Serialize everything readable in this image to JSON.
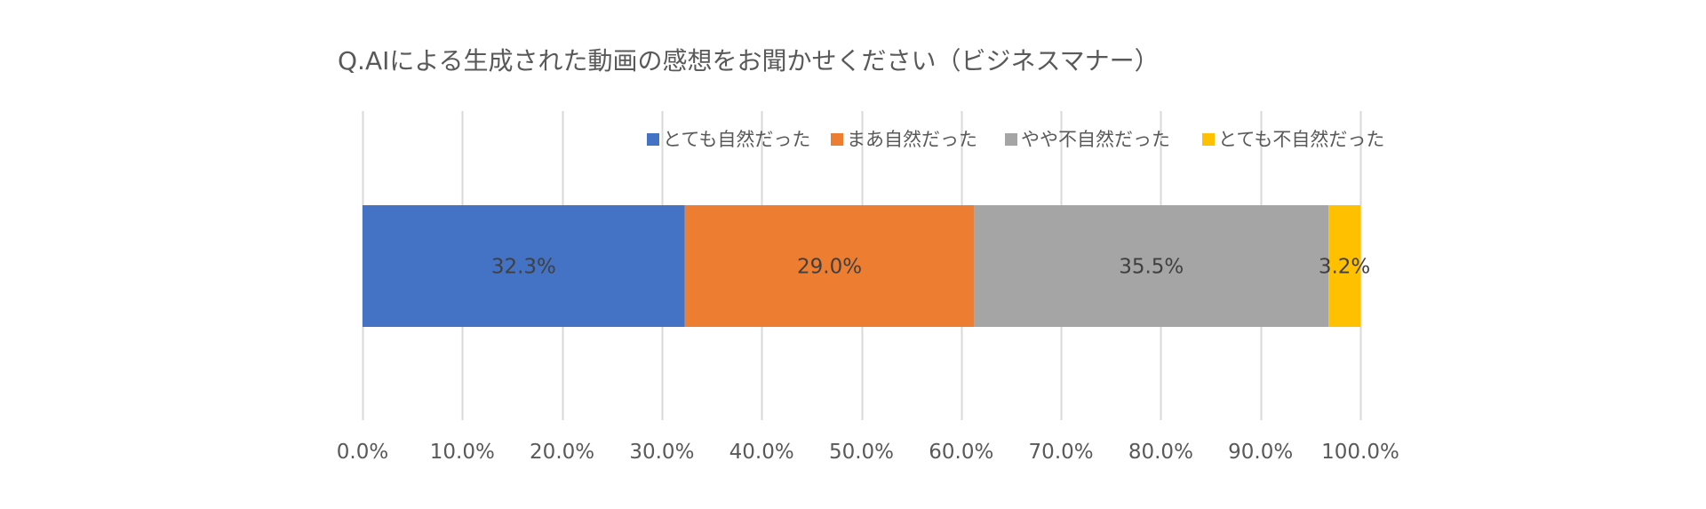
{
  "chart_data": {
    "type": "bar",
    "orientation": "horizontal",
    "stacked": "percent",
    "title": "Q.AIによる生成された動画の感想をお聞かせください（ビジネスマナー）",
    "categories": [
      ""
    ],
    "series": [
      {
        "name": "とても自然だった",
        "values": [
          32.3
        ],
        "label": "32.3%",
        "color": "#4472C4"
      },
      {
        "name": "まあ自然だった",
        "values": [
          29.0
        ],
        "label": "29.0%",
        "color": "#ED7D31"
      },
      {
        "name": "やや不自然だった",
        "values": [
          35.5
        ],
        "label": "35.5%",
        "color": "#A5A5A5"
      },
      {
        "name": "とても不自然だった",
        "values": [
          3.2
        ],
        "label": "3.2%",
        "color": "#FFC000"
      }
    ],
    "xlim": [
      0,
      100
    ],
    "xticks": [
      0,
      10,
      20,
      30,
      40,
      50,
      60,
      70,
      80,
      90,
      100
    ],
    "xtick_labels": [
      "0.0%",
      "10.0%",
      "20.0%",
      "30.0%",
      "40.0%",
      "50.0%",
      "60.0%",
      "70.0%",
      "80.0%",
      "90.0%",
      "100.0%"
    ],
    "grid": true,
    "legend_position": "top-right",
    "grid_color": "#D9D9D9",
    "text_color": "#595959"
  }
}
